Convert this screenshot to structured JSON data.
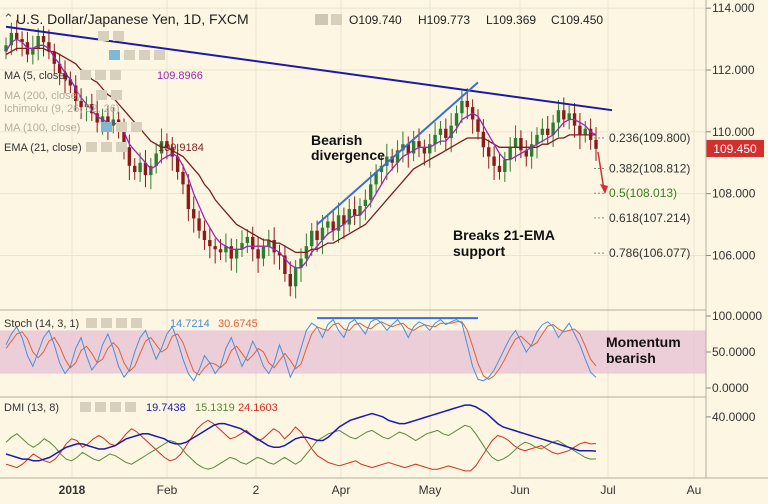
{
  "header": {
    "symbol": "U.S. Dollar/Japanese Yen, 1D, FXCM",
    "open": "O109.740",
    "high": "H109.773",
    "low": "L109.369",
    "close": "C109.450"
  },
  "indicators": {
    "ma5": {
      "label": "MA (5, close)",
      "value": "109.8966"
    },
    "ma200": {
      "label": "MA (200, close)"
    },
    "ichimoku": {
      "label": "Ichimoku (9, 26, 52, 26)"
    },
    "ma100": {
      "label": "MA (100, close)"
    },
    "ema21": {
      "label": "EMA (21, close)",
      "value": "109.9184"
    }
  },
  "annotations": {
    "bearish_div_1": "Bearish",
    "bearish_div_2": "divergence",
    "breaks_1": "Breaks 21-EMA",
    "breaks_2": "support",
    "momentum_1": "Momentum",
    "momentum_2": "bearish"
  },
  "price_badge": "109.450",
  "colors": {
    "background": "#fdf6e3",
    "up_candle": "#2e7d32",
    "down_candle": "#8b1a1a",
    "ma5": "#9c27b0",
    "ema21": "#7b1f1f",
    "trendline": "#1a1aa6",
    "divergence": "#3a6fd8",
    "stoch_band": "#e9c7d6",
    "stoch_k": "#4a8fd8",
    "stoch_d": "#e0603a",
    "dmi_adx": "#1a1ab0",
    "dmi_plus": "#5a8a3a",
    "dmi_minus": "#d03020",
    "badge": "#d32f2f"
  },
  "stoch": {
    "label": "Stoch (14, 3, 1)",
    "k_value": "14.7214",
    "d_value": "30.6745"
  },
  "dmi": {
    "label": "DMI (13, 8)",
    "adx_value": "19.7438",
    "plus_value": "15.1319",
    "minus_value": "24.1603"
  },
  "chart_data": [
    {
      "type": "candlestick",
      "title": "U.S. Dollar/Japanese Yen, 1D, FXCM",
      "x_axis": {
        "tick_labels": [
          "2018",
          "Feb",
          "2",
          "Apr",
          "May",
          "Jun",
          "Jul",
          "Au"
        ]
      },
      "y_axis": {
        "tick_labels": [
          "114.000",
          "112.000",
          "110.000",
          "108.000",
          "106.000"
        ],
        "range": [
          104.3,
          114.2
        ]
      },
      "fibonacci": [
        {
          "label": "0.236(109.800)",
          "value": 109.8
        },
        {
          "label": "0.382(108.812)",
          "value": 108.812
        },
        {
          "label": "0.5(108.013)",
          "value": 108.013
        },
        {
          "label": "0.618(107.214)",
          "value": 107.214
        },
        {
          "label": "0.786(106.077)",
          "value": 106.077
        }
      ],
      "close_series": [
        112.8,
        113.2,
        113.0,
        112.9,
        112.5,
        112.7,
        113.1,
        112.9,
        112.6,
        112.2,
        111.9,
        111.7,
        111.5,
        111.0,
        110.8,
        110.9,
        110.6,
        110.3,
        110.5,
        110.2,
        110.4,
        110.1,
        109.5,
        108.9,
        108.7,
        109.0,
        108.6,
        108.9,
        109.3,
        109.7,
        109.5,
        109.2,
        108.7,
        108.3,
        107.5,
        107.2,
        106.8,
        106.5,
        106.3,
        106.2,
        106.1,
        106.3,
        105.9,
        106.2,
        106.4,
        106.6,
        106.2,
        105.9,
        106.3,
        106.5,
        106.1,
        106.0,
        105.4,
        105.0,
        105.6,
        105.9,
        106.3,
        106.8,
        106.5,
        106.9,
        107.1,
        106.8,
        107.3,
        107.0,
        107.5,
        107.3,
        107.6,
        107.8,
        108.3,
        108.7,
        108.9,
        109.2,
        109.0,
        109.4,
        109.6,
        109.3,
        109.7,
        109.5,
        109.3,
        109.6,
        109.9,
        110.1,
        109.8,
        110.2,
        110.6,
        111.0,
        110.8,
        110.4,
        110.0,
        109.5,
        109.2,
        108.9,
        108.7,
        109.1,
        109.5,
        109.8,
        109.4,
        109.2,
        109.6,
        109.9,
        110.1,
        109.9,
        110.3,
        110.7,
        110.4,
        110.6,
        110.2,
        109.9,
        110.1,
        109.74,
        109.45
      ],
      "ma5_series": [
        112.6,
        112.9,
        113.0,
        112.9,
        112.7,
        112.7,
        112.8,
        112.8,
        112.7,
        112.4,
        112.2,
        111.9,
        111.7,
        111.4,
        111.1,
        110.9,
        110.7,
        110.5,
        110.4,
        110.3,
        110.3,
        110.2,
        110.0,
        109.6,
        109.4,
        109.2,
        109.0,
        108.8,
        108.9,
        109.1,
        109.2,
        109.3,
        109.2,
        108.9,
        108.5,
        108.0,
        107.6,
        107.2,
        106.9,
        106.6,
        106.4,
        106.3,
        106.2,
        106.2,
        106.2,
        106.3,
        106.3,
        106.3,
        106.3,
        106.3,
        106.2,
        106.1,
        105.9,
        105.7,
        105.6,
        105.6,
        105.8,
        106.1,
        106.3,
        106.5,
        106.7,
        106.8,
        106.9,
        107.0,
        107.2,
        107.3,
        107.3,
        107.5,
        107.7,
        108.0,
        108.3,
        108.6,
        108.8,
        109.0,
        109.2,
        109.3,
        109.4,
        109.5,
        109.5,
        109.5,
        109.6,
        109.7,
        109.7,
        109.9,
        110.1,
        110.4,
        110.5,
        110.6,
        110.5,
        110.2,
        109.9,
        109.6,
        109.3,
        109.1,
        109.1,
        109.2,
        109.3,
        109.4,
        109.5,
        109.6,
        109.7,
        109.8,
        109.9,
        110.1,
        110.3,
        110.4,
        110.4,
        110.3,
        110.2,
        110.0,
        109.9
      ],
      "ema21_series": [
        112.5,
        112.6,
        112.7,
        112.7,
        112.7,
        112.7,
        112.7,
        112.7,
        112.6,
        112.6,
        112.5,
        112.4,
        112.3,
        112.2,
        112.0,
        111.9,
        111.7,
        111.6,
        111.4,
        111.2,
        111.1,
        110.9,
        110.7,
        110.5,
        110.3,
        110.1,
        109.9,
        109.7,
        109.6,
        109.5,
        109.5,
        109.4,
        109.3,
        109.2,
        109.0,
        108.8,
        108.6,
        108.3,
        108.1,
        107.8,
        107.6,
        107.4,
        107.2,
        107.0,
        106.9,
        106.8,
        106.7,
        106.6,
        106.5,
        106.5,
        106.4,
        106.4,
        106.3,
        106.2,
        106.1,
        106.1,
        106.1,
        106.2,
        106.2,
        106.3,
        106.4,
        106.4,
        106.5,
        106.6,
        106.7,
        106.8,
        106.9,
        107.0,
        107.2,
        107.4,
        107.6,
        107.8,
        108.0,
        108.2,
        108.4,
        108.6,
        108.8,
        108.9,
        109.0,
        109.1,
        109.2,
        109.3,
        109.4,
        109.5,
        109.6,
        109.7,
        109.8,
        109.8,
        109.8,
        109.8,
        109.7,
        109.6,
        109.5,
        109.5,
        109.5,
        109.5,
        109.5,
        109.5,
        109.5,
        109.5,
        109.6,
        109.6,
        109.7,
        109.8,
        109.8,
        109.9,
        109.9,
        109.9,
        109.9,
        109.9,
        109.9
      ],
      "down_trendline": [
        [
          0,
          113.4
        ],
        [
          119,
          110.7
        ]
      ],
      "divergence_line": [
        [
          58,
          107.0
        ],
        [
          88,
          111.6
        ]
      ]
    },
    {
      "type": "line",
      "title": "Stoch (14, 3, 1)",
      "y_axis": {
        "tick_labels": [
          "100.0000",
          "50.0000",
          "0.0000"
        ],
        "range": [
          0,
          100
        ]
      },
      "band": [
        20,
        80
      ],
      "series": [
        {
          "name": "K",
          "values": [
            60,
            75,
            85,
            70,
            45,
            30,
            50,
            70,
            80,
            60,
            35,
            20,
            30,
            55,
            70,
            45,
            25,
            35,
            60,
            75,
            55,
            30,
            15,
            25,
            50,
            70,
            80,
            60,
            40,
            55,
            75,
            85,
            65,
            40,
            20,
            10,
            25,
            45,
            35,
            20,
            30,
            55,
            70,
            50,
            30,
            45,
            65,
            50,
            30,
            20,
            35,
            60,
            40,
            15,
            30,
            55,
            80,
            90,
            85,
            70,
            88,
            95,
            80,
            70,
            90,
            95,
            85,
            75,
            92,
            96,
            90,
            80,
            88,
            95,
            85,
            70,
            85,
            92,
            88,
            80,
            90,
            95,
            88,
            92,
            95,
            90,
            60,
            30,
            12,
            10,
            15,
            25,
            40,
            55,
            70,
            80,
            65,
            50,
            60,
            78,
            88,
            92,
            85,
            70,
            80,
            90,
            75,
            60,
            40,
            22,
            14.72
          ]
        },
        {
          "name": "D",
          "values": [
            55,
            65,
            75,
            78,
            68,
            50,
            42,
            50,
            65,
            70,
            58,
            40,
            28,
            35,
            52,
            58,
            48,
            35,
            40,
            55,
            63,
            55,
            35,
            23,
            30,
            48,
            65,
            70,
            60,
            50,
            55,
            72,
            75,
            63,
            42,
            23,
            18,
            28,
            35,
            33,
            28,
            35,
            52,
            58,
            48,
            38,
            45,
            55,
            50,
            35,
            28,
            38,
            48,
            38,
            27,
            33,
            55,
            75,
            85,
            82,
            80,
            88,
            90,
            82,
            80,
            88,
            90,
            85,
            82,
            88,
            92,
            88,
            85,
            88,
            90,
            83,
            80,
            85,
            88,
            86,
            85,
            90,
            90,
            90,
            92,
            92,
            80,
            58,
            34,
            17,
            12,
            17,
            27,
            40,
            55,
            68,
            72,
            65,
            58,
            63,
            75,
            86,
            88,
            82,
            78,
            80,
            82,
            75,
            58,
            40,
            30.67
          ]
        }
      ],
      "divergence_line": [
        [
          58,
          97
        ],
        [
          88,
          97
        ]
      ]
    },
    {
      "type": "line",
      "title": "DMI (13, 8)",
      "y_axis": {
        "tick_labels": [
          "40.0000"
        ]
      },
      "series": [
        {
          "name": "ADX",
          "values": [
            18,
            17,
            16,
            15,
            15,
            14,
            14,
            15,
            16,
            18,
            20,
            22,
            23,
            24,
            24,
            23,
            22,
            21,
            21,
            22,
            23,
            25,
            27,
            28,
            29,
            30,
            30,
            29,
            28,
            27,
            25,
            24,
            24,
            25,
            27,
            29,
            31,
            33,
            35,
            36,
            36,
            35,
            34,
            33,
            31,
            29,
            27,
            25,
            23,
            22,
            22,
            23,
            25,
            27,
            28,
            28,
            27,
            26,
            26,
            28,
            31,
            34,
            36,
            38,
            39,
            40,
            41,
            42,
            41,
            40,
            38,
            37,
            36,
            36,
            37,
            38,
            39,
            40,
            41,
            42,
            43,
            44,
            45,
            46,
            47,
            47,
            46,
            44,
            42,
            39,
            36,
            34,
            33,
            32,
            31,
            30,
            29,
            28,
            27,
            26,
            25,
            24,
            23,
            22,
            21,
            20,
            20,
            20,
            19.74
          ]
        },
        {
          "name": "+DI",
          "values": [
            25,
            28,
            30,
            27,
            24,
            22,
            24,
            27,
            25,
            22,
            18,
            15,
            14,
            16,
            19,
            17,
            15,
            14,
            16,
            18,
            17,
            15,
            13,
            12,
            14,
            16,
            18,
            20,
            22,
            24,
            26,
            25,
            22,
            18,
            15,
            12,
            10,
            9,
            10,
            12,
            14,
            16,
            15,
            13,
            12,
            14,
            16,
            15,
            13,
            12,
            14,
            16,
            14,
            12,
            14,
            18,
            22,
            26,
            28,
            30,
            31,
            32,
            30,
            28,
            27,
            29,
            31,
            32,
            30,
            28,
            27,
            29,
            31,
            30,
            28,
            26,
            28,
            30,
            31,
            32,
            30,
            29,
            31,
            33,
            35,
            34,
            30,
            25,
            20,
            16,
            14,
            15,
            17,
            20,
            23,
            25,
            24,
            22,
            21,
            23,
            25,
            26,
            24,
            22,
            20,
            18,
            16,
            15,
            15.13
          ]
        },
        {
          "name": "-DI",
          "values": [
            12,
            11,
            10,
            12,
            15,
            18,
            16,
            14,
            13,
            15,
            19,
            24,
            27,
            26,
            22,
            24,
            27,
            29,
            27,
            24,
            23,
            26,
            30,
            33,
            31,
            28,
            25,
            22,
            19,
            16,
            14,
            15,
            18,
            23,
            28,
            33,
            36,
            38,
            36,
            33,
            30,
            27,
            28,
            30,
            32,
            29,
            26,
            27,
            30,
            33,
            31,
            27,
            30,
            34,
            31,
            26,
            21,
            17,
            15,
            13,
            12,
            11,
            12,
            13,
            14,
            12,
            11,
            10,
            11,
            12,
            13,
            12,
            11,
            10,
            11,
            12,
            11,
            10,
            9,
            9,
            10,
            11,
            10,
            9,
            8,
            8,
            11,
            16,
            21,
            26,
            29,
            28,
            26,
            23,
            21,
            20,
            21,
            22,
            23,
            21,
            19,
            18,
            19,
            20,
            22,
            24,
            25,
            24,
            24.16
          ]
        }
      ]
    }
  ]
}
